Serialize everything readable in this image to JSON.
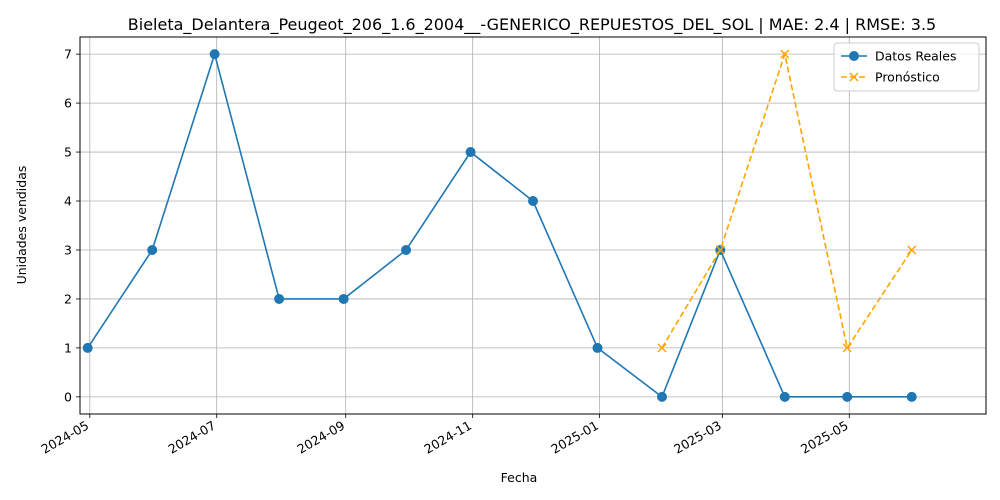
{
  "chart_data": {
    "type": "line",
    "title": "Bieleta_Delantera_Peugeot_206_1.6_2004__-GENERICO_REPUESTOS_DEL_SOL | MAE: 2.4 | RMSE: 3.5",
    "xlabel": "Fecha",
    "ylabel": "Unidades vendidas",
    "ylim": [
      -0.35,
      7.35
    ],
    "grid": true,
    "legend_position": "top-right",
    "x_ticks": [
      {
        "date": "2024-05-01",
        "label": "2024-05"
      },
      {
        "date": "2024-07-01",
        "label": "2024-07"
      },
      {
        "date": "2024-09-01",
        "label": "2024-09"
      },
      {
        "date": "2024-11-01",
        "label": "2024-11"
      },
      {
        "date": "2025-01-01",
        "label": "2025-01"
      },
      {
        "date": "2025-03-01",
        "label": "2025-03"
      },
      {
        "date": "2025-05-01",
        "label": "2025-05"
      }
    ],
    "y_ticks": [
      0,
      1,
      2,
      3,
      4,
      5,
      6,
      7
    ],
    "series": [
      {
        "name": "Datos Reales",
        "color": "#1f77b4",
        "style": "solid",
        "marker": "circle",
        "x": [
          "2024-04-30",
          "2024-05-31",
          "2024-06-30",
          "2024-07-31",
          "2024-08-31",
          "2024-09-30",
          "2024-10-31",
          "2024-11-30",
          "2024-12-31",
          "2025-01-31",
          "2025-02-28",
          "2025-03-31",
          "2025-04-30",
          "2025-05-31"
        ],
        "values": [
          1,
          3,
          7,
          2,
          2,
          3,
          5,
          4,
          1,
          0,
          3,
          0,
          0,
          0
        ]
      },
      {
        "name": "Pronóstico",
        "color": "#ffa500",
        "style": "dashed",
        "marker": "x",
        "x": [
          "2025-01-31",
          "2025-02-28",
          "2025-03-31",
          "2025-04-30",
          "2025-05-31"
        ],
        "values": [
          1,
          3,
          7,
          1,
          3
        ]
      }
    ]
  }
}
